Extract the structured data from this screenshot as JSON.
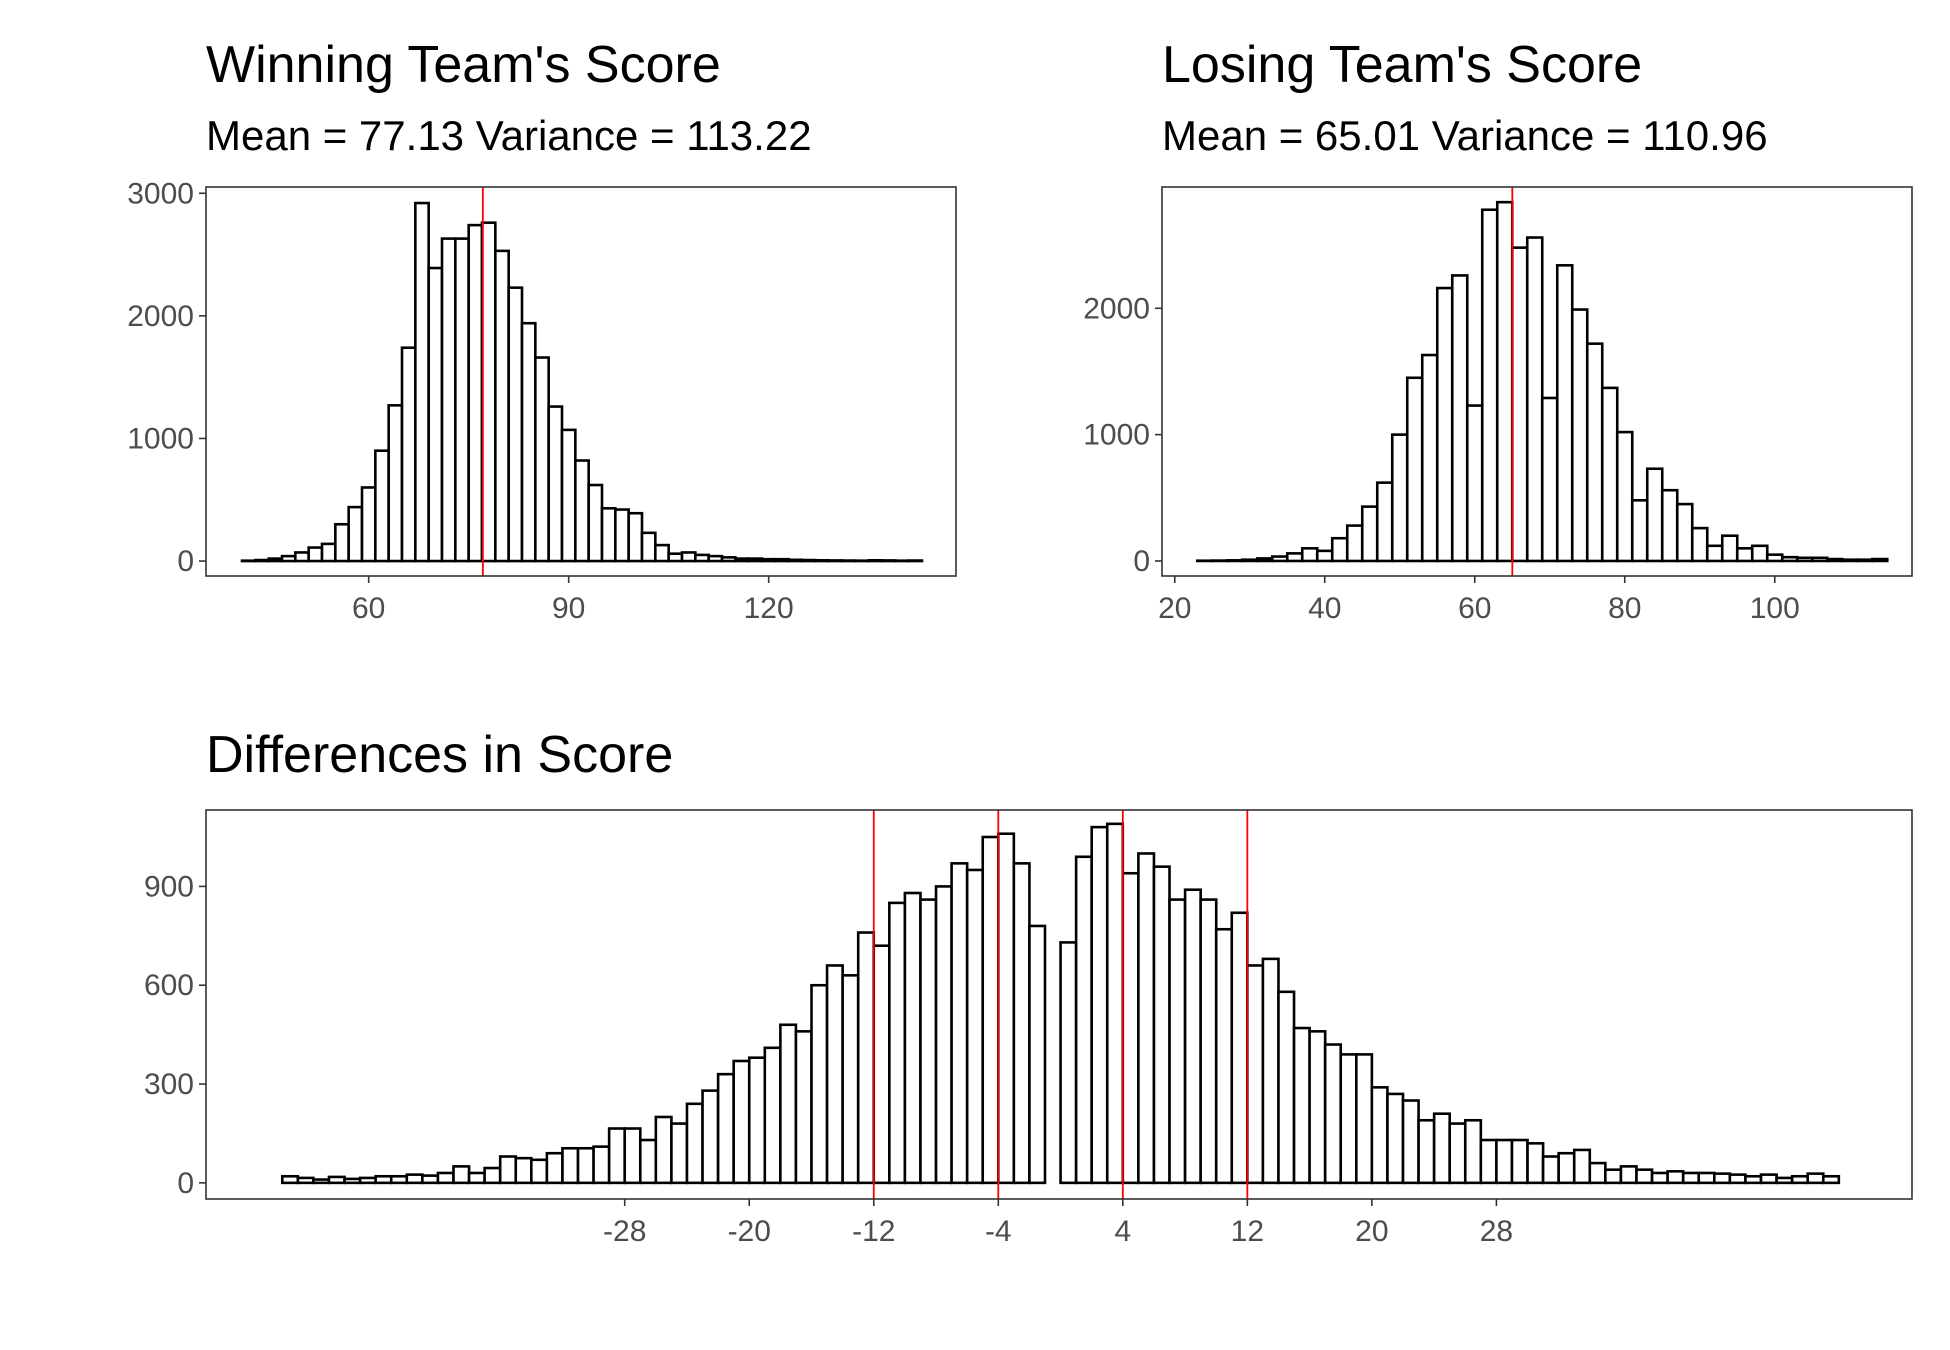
{
  "chart_data": [
    {
      "type": "histogram",
      "title": "Winning Team's Score",
      "subtitle": "Mean = 77.13 Variance = 113.22",
      "bins": [
        41,
        43,
        45,
        47,
        49,
        51,
        53,
        55,
        57,
        59,
        61,
        63,
        65,
        67,
        69,
        71,
        73,
        75,
        77,
        79,
        81,
        83,
        85,
        87,
        89,
        91,
        93,
        95,
        97,
        99,
        101,
        103,
        105,
        107,
        109,
        111,
        113,
        115,
        117,
        119,
        121,
        123,
        125,
        127,
        129,
        131,
        133,
        135,
        137,
        139,
        141,
        143
      ],
      "values": [
        3,
        8,
        20,
        40,
        70,
        110,
        140,
        300,
        440,
        600,
        900,
        1270,
        1740,
        2920,
        2390,
        2630,
        2630,
        2740,
        2760,
        2530,
        2230,
        1940,
        1660,
        1260,
        1070,
        820,
        620,
        430,
        420,
        390,
        230,
        130,
        60,
        70,
        50,
        40,
        30,
        20,
        20,
        15,
        15,
        10,
        8,
        6,
        5,
        4,
        3,
        6,
        5,
        3,
        4
      ],
      "color": "#ffffff",
      "edgecolor": "#000000",
      "vlines": [
        77.13
      ],
      "vline_color": "#ff0000",
      "xlim": [
        35.6,
        148.1
      ],
      "xticks": [
        60,
        90,
        120
      ],
      "ylim": [
        -122,
        3051
      ],
      "yticks": [
        0,
        1000,
        2000,
        3000
      ],
      "grid": false
    },
    {
      "type": "histogram",
      "title": "Losing Team's Score",
      "subtitle": "Mean = 65.01 Variance = 110.96",
      "bins": [
        23,
        25,
        27,
        29,
        31,
        33,
        35,
        37,
        39,
        41,
        43,
        45,
        47,
        49,
        51,
        53,
        55,
        57,
        59,
        61,
        63,
        65,
        67,
        69,
        71,
        73,
        75,
        77,
        79,
        81,
        83,
        85,
        87,
        89,
        91,
        93,
        95,
        97,
        99,
        101,
        103,
        105,
        107,
        109,
        111,
        113,
        115
      ],
      "values": [
        2,
        3,
        5,
        10,
        20,
        35,
        60,
        100,
        80,
        180,
        280,
        430,
        620,
        1000,
        1450,
        1630,
        2160,
        2260,
        1230,
        2780,
        2840,
        2480,
        2560,
        1290,
        2340,
        1990,
        1720,
        1370,
        1020,
        480,
        730,
        560,
        450,
        260,
        120,
        200,
        100,
        120,
        50,
        30,
        25,
        25,
        15,
        10,
        10,
        15
      ],
      "color": "#ffffff",
      "edgecolor": "#000000",
      "vlines": [
        65.01
      ],
      "vline_color": "#ff0000",
      "xlim": [
        18.3,
        118.3
      ],
      "xticks": [
        20,
        40,
        60,
        80,
        100
      ],
      "ylim": [
        -119,
        2960
      ],
      "yticks": [
        0,
        1000,
        2000
      ],
      "grid": false
    },
    {
      "type": "histogram",
      "title": "Differences in Score",
      "bins": [
        -50,
        -49,
        -48,
        -47,
        -46,
        -45,
        -44,
        -43,
        -42,
        -41,
        -40,
        -39,
        -38,
        -37,
        -36,
        -35,
        -34,
        -33,
        -32,
        -31,
        -30,
        -29,
        -28,
        -27,
        -26,
        -25,
        -24,
        -23,
        -22,
        -21,
        -20,
        -19,
        -18,
        -17,
        -16,
        -15,
        -14,
        -13,
        -12,
        -11,
        -10,
        -9,
        -8,
        -7,
        -6,
        -5,
        -4,
        -3,
        -2,
        -1,
        0,
        1,
        2,
        3,
        4,
        5,
        6,
        7,
        8,
        9,
        10,
        11,
        12,
        13,
        14,
        15,
        16,
        17,
        18,
        19,
        20,
        21,
        22,
        23,
        24,
        25,
        26,
        27,
        28,
        29,
        30,
        31,
        32,
        33,
        34,
        35,
        36,
        37,
        38,
        39,
        40,
        41,
        42,
        43,
        44,
        45,
        46,
        47,
        48,
        49,
        50
      ],
      "values": [
        20,
        15,
        10,
        18,
        12,
        15,
        20,
        20,
        25,
        22,
        30,
        50,
        30,
        45,
        80,
        75,
        70,
        90,
        105,
        105,
        110,
        165,
        165,
        130,
        200,
        180,
        240,
        280,
        330,
        370,
        380,
        410,
        480,
        460,
        600,
        660,
        630,
        760,
        720,
        850,
        880,
        860,
        900,
        970,
        950,
        1050,
        1060,
        970,
        780,
        0,
        730,
        990,
        1080,
        1090,
        940,
        1000,
        960,
        860,
        890,
        860,
        770,
        820,
        660,
        680,
        580,
        470,
        460,
        420,
        390,
        390,
        290,
        270,
        250,
        190,
        210,
        180,
        190,
        130,
        130,
        130,
        120,
        80,
        90,
        100,
        60,
        40,
        50,
        40,
        30,
        35,
        30,
        30,
        28,
        25,
        20,
        25,
        15,
        20,
        28,
        20
      ],
      "color": "#ffffff",
      "edgecolor": "#000000",
      "vlines": [
        -12,
        -4,
        4,
        12
      ],
      "vline_color": "#ff0000",
      "xlim": [
        -54.9,
        54.7
      ],
      "xticks": [
        -28,
        -20,
        -12,
        -4,
        4,
        12,
        20,
        28
      ],
      "ylim": [
        -49,
        1132
      ],
      "yticks": [
        0,
        300,
        600,
        900
      ],
      "grid": false
    }
  ]
}
